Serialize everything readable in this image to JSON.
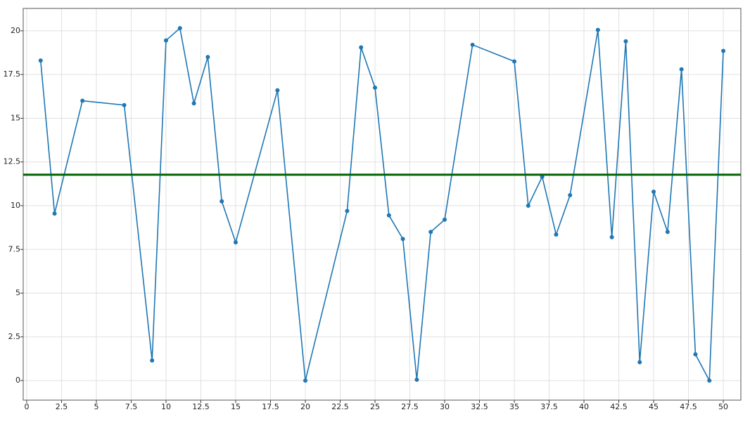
{
  "chart_data": {
    "type": "line",
    "x": [
      1,
      2,
      4,
      7,
      9,
      10,
      11,
      12,
      13,
      14,
      15,
      18,
      20,
      23,
      24,
      25,
      26,
      27,
      28,
      29,
      30,
      32,
      35,
      36,
      37,
      38,
      39,
      41,
      42,
      43,
      44,
      45,
      46,
      47,
      48,
      49,
      50
    ],
    "series": [
      {
        "color": "#1f77b4",
        "values": [
          18.3,
          9.55,
          16.0,
          15.75,
          1.15,
          19.45,
          20.15,
          15.85,
          18.5,
          10.25,
          7.9,
          16.6,
          0.0,
          9.7,
          19.05,
          16.75,
          9.45,
          8.1,
          0.05,
          8.5,
          9.2,
          19.2,
          18.25,
          10.0,
          11.65,
          8.35,
          10.6,
          20.05,
          8.2,
          19.4,
          1.05,
          10.8,
          8.5,
          17.8,
          1.5,
          0.0,
          18.85
        ]
      }
    ],
    "hline": {
      "value": 11.77,
      "color": "#006400"
    },
    "xlim": [
      -0.25,
      51.26
    ],
    "ylim": [
      -1.12,
      21.28
    ],
    "xticks": [
      0,
      2.5,
      5,
      7.5,
      10,
      12.5,
      15,
      17.5,
      20,
      22.5,
      25,
      27.5,
      30,
      32.5,
      35,
      37.5,
      40,
      42.5,
      45,
      47.5,
      50
    ],
    "yticks": [
      0,
      2.5,
      5,
      7.5,
      10,
      12.5,
      15,
      17.5,
      20
    ],
    "grid": true
  }
}
